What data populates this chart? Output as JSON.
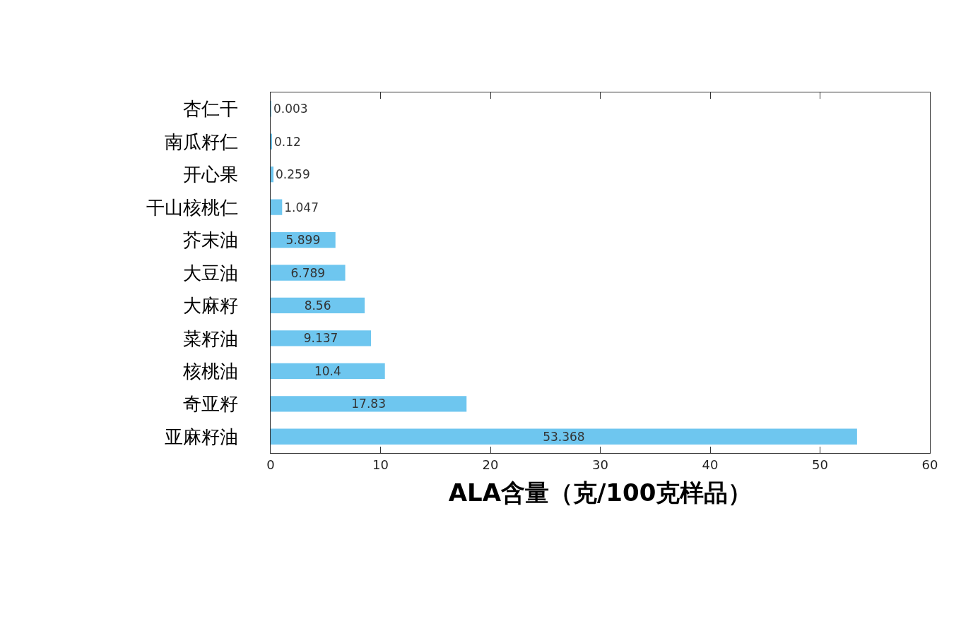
{
  "chart_data": {
    "type": "bar",
    "orientation": "horizontal",
    "categories": [
      "杏仁干",
      "南瓜籽仁",
      "开心果",
      "干山核桃仁",
      "芥末油",
      "大豆油",
      "大麻籽",
      "菜籽油",
      "核桃油",
      "奇亚籽",
      "亚麻籽油"
    ],
    "values": [
      0.003,
      0.12,
      0.259,
      1.047,
      5.899,
      6.789,
      8.56,
      9.137,
      10.4,
      17.83,
      53.368
    ],
    "color": "#6ec6ef",
    "xlabel": "ALA含量（克/100克样品）",
    "xlim": [
      0,
      60
    ],
    "xticks": [
      0,
      10,
      20,
      30,
      40,
      50,
      60
    ],
    "data_labels": true
  }
}
